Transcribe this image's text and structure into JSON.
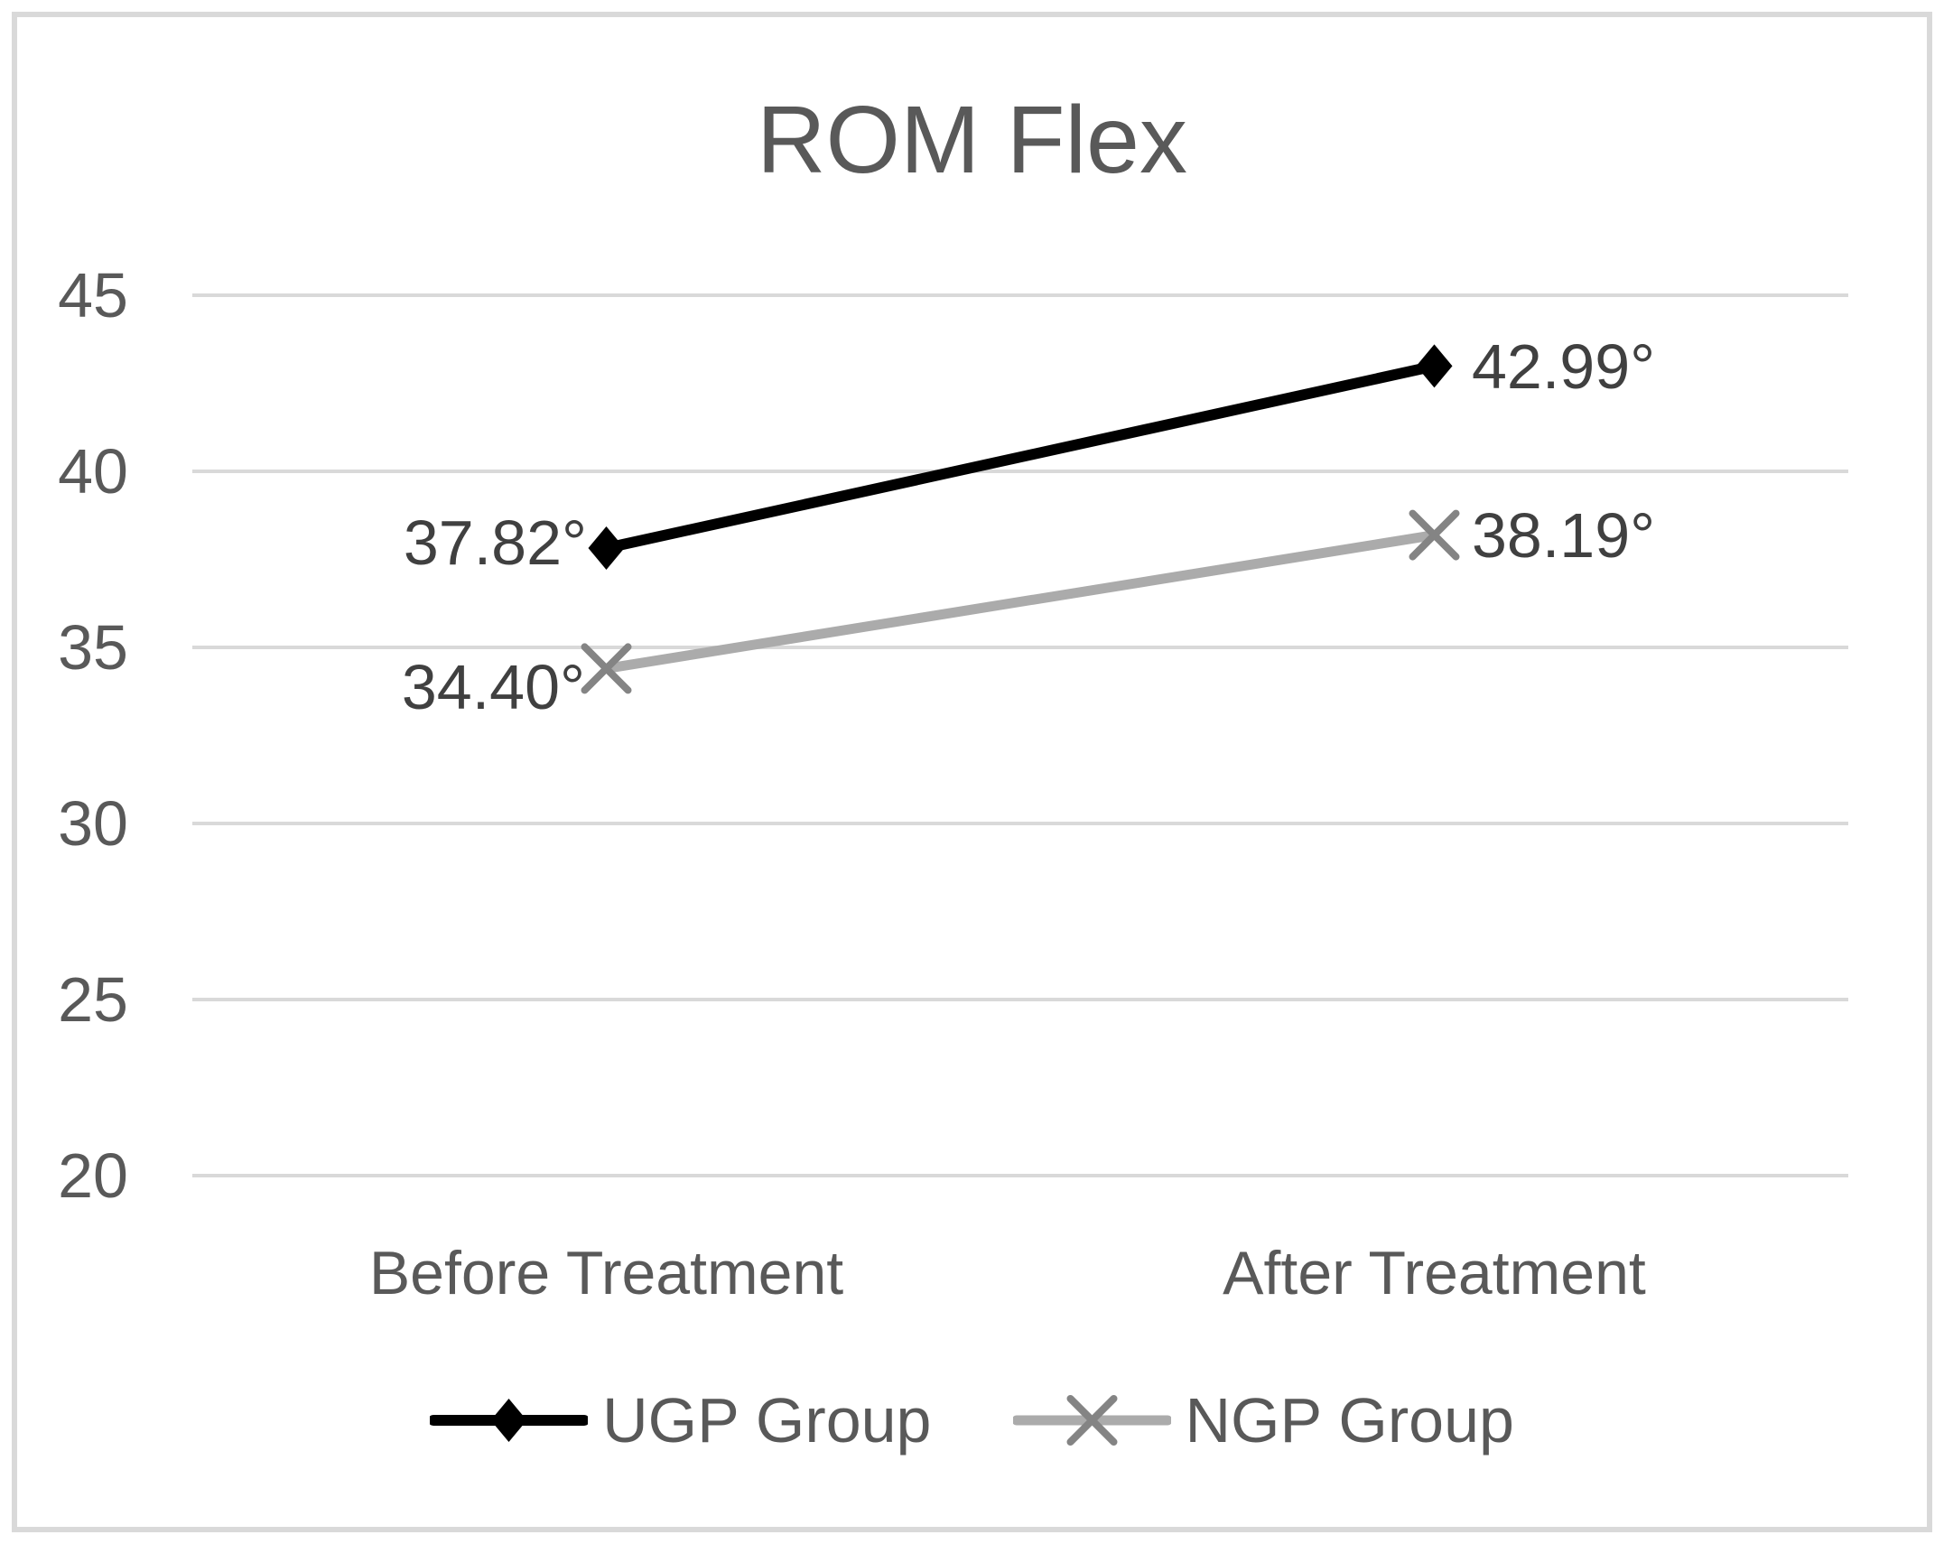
{
  "chart_data": {
    "type": "line",
    "title": "ROM Flex",
    "categories": [
      "Before Treatment",
      "After Treatment"
    ],
    "series": [
      {
        "name": "UGP Group",
        "values": [
          37.82,
          42.99
        ],
        "data_labels": [
          "37.82°",
          "42.99°"
        ],
        "color": "#000000",
        "marker": "diamond"
      },
      {
        "name": "NGP Group",
        "values": [
          34.4,
          38.19
        ],
        "data_labels": [
          "34.40°",
          "38.19°"
        ],
        "color": "#ababab",
        "marker": "x",
        "marker_color": "#848484"
      }
    ],
    "y_axis": {
      "min": 20,
      "max": 45,
      "step": 5,
      "ticks": [
        "45",
        "40",
        "35",
        "30",
        "25",
        "20"
      ]
    },
    "grid": "horizontal",
    "legend_position": "bottom",
    "colors": {
      "background": "#ffffff",
      "frame_border": "#d9d9d9",
      "gridline": "#d9d9d9",
      "axis_text": "#595959",
      "title_text": "#595959",
      "data_label_text": "#404040"
    }
  }
}
